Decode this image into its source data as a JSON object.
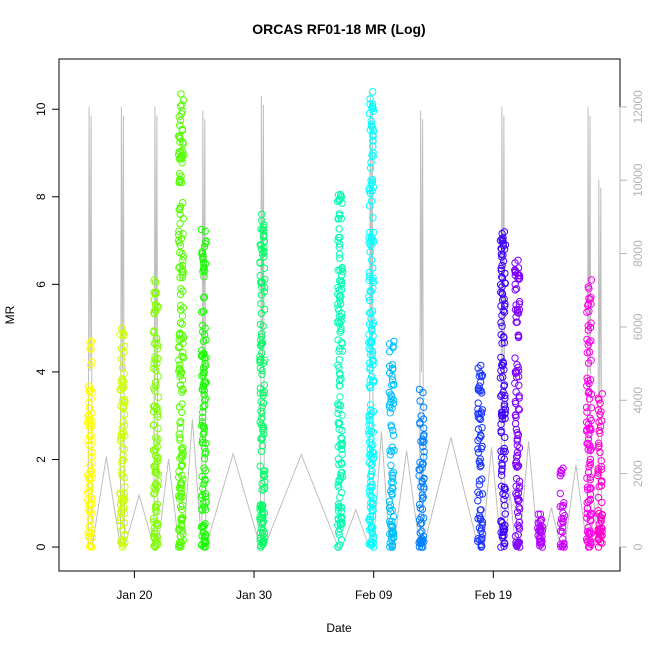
{
  "chart_data": {
    "type": "scatter",
    "title": "ORCAS RF01-18 MR (Log)",
    "xlabel": "Date",
    "ylabel": "MR",
    "x_ticks": [
      "Jan 20",
      "Jan 30",
      "Feb 09",
      "Feb 19"
    ],
    "x_tick_days": [
      20,
      30,
      40,
      50
    ],
    "xlim_days": [
      14.7,
      59.5
    ],
    "ylim": [
      -0.25,
      10.85
    ],
    "y_ticks": [
      0,
      2,
      4,
      6,
      8,
      10
    ],
    "y2_ticks": [
      0,
      2000,
      4000,
      6000,
      8000,
      10000,
      12000
    ],
    "y2lim": [
      -300,
      12950
    ],
    "grid": false,
    "legend": "none",
    "series": [
      {
        "day": 16.3,
        "ymax": 4.7,
        "color": "#FFFF00",
        "alt_max": 12000
      },
      {
        "day": 19.0,
        "ymax": 5.0,
        "color": "#CCFF00",
        "alt_max": 12000
      },
      {
        "day": 21.8,
        "ymax": 6.1,
        "color": "#80FF00",
        "alt_max": 12000
      },
      {
        "day": 23.9,
        "ymax": 10.35,
        "color": "#55FF00",
        "alt_max": 0
      },
      {
        "day": 25.8,
        "ymax": 7.25,
        "color": "#1AFF00",
        "alt_max": 11900
      },
      {
        "day": 30.7,
        "ymax": 7.6,
        "color": "#00FF66",
        "alt_max": 12300
      },
      {
        "day": 37.2,
        "ymax": 8.05,
        "color": "#00FFB3",
        "alt_max": 0
      },
      {
        "day": 39.8,
        "ymax": 10.4,
        "color": "#00FFFF",
        "alt_max": 12400
      },
      {
        "day": 41.5,
        "ymax": 4.7,
        "color": "#00BFFF",
        "alt_max": 0
      },
      {
        "day": 44.0,
        "ymax": 3.6,
        "color": "#0080FF",
        "alt_max": 11900
      },
      {
        "day": 48.9,
        "ymax": 4.15,
        "color": "#1A33FF",
        "alt_max": 0
      },
      {
        "day": 50.8,
        "ymax": 7.2,
        "color": "#4000FF",
        "alt_max": 12000
      },
      {
        "day": 52.0,
        "ymax": 6.55,
        "color": "#8000FF",
        "alt_max": 0
      },
      {
        "day": 53.9,
        "ymax": 0.75,
        "color": "#B300FF",
        "alt_max": 0
      },
      {
        "day": 55.8,
        "ymax": 1.8,
        "color": "#CC00FF",
        "alt_max": 0
      },
      {
        "day": 58.0,
        "ymax": 6.1,
        "color": "#FF00EE",
        "alt_max": 12000
      },
      {
        "day": 58.9,
        "ymax": 3.5,
        "color": "#FF00CC",
        "alt_max": 10000
      }
    ],
    "altitude_color": "#bebebe",
    "right_tick_color": "#b3b3b3"
  }
}
